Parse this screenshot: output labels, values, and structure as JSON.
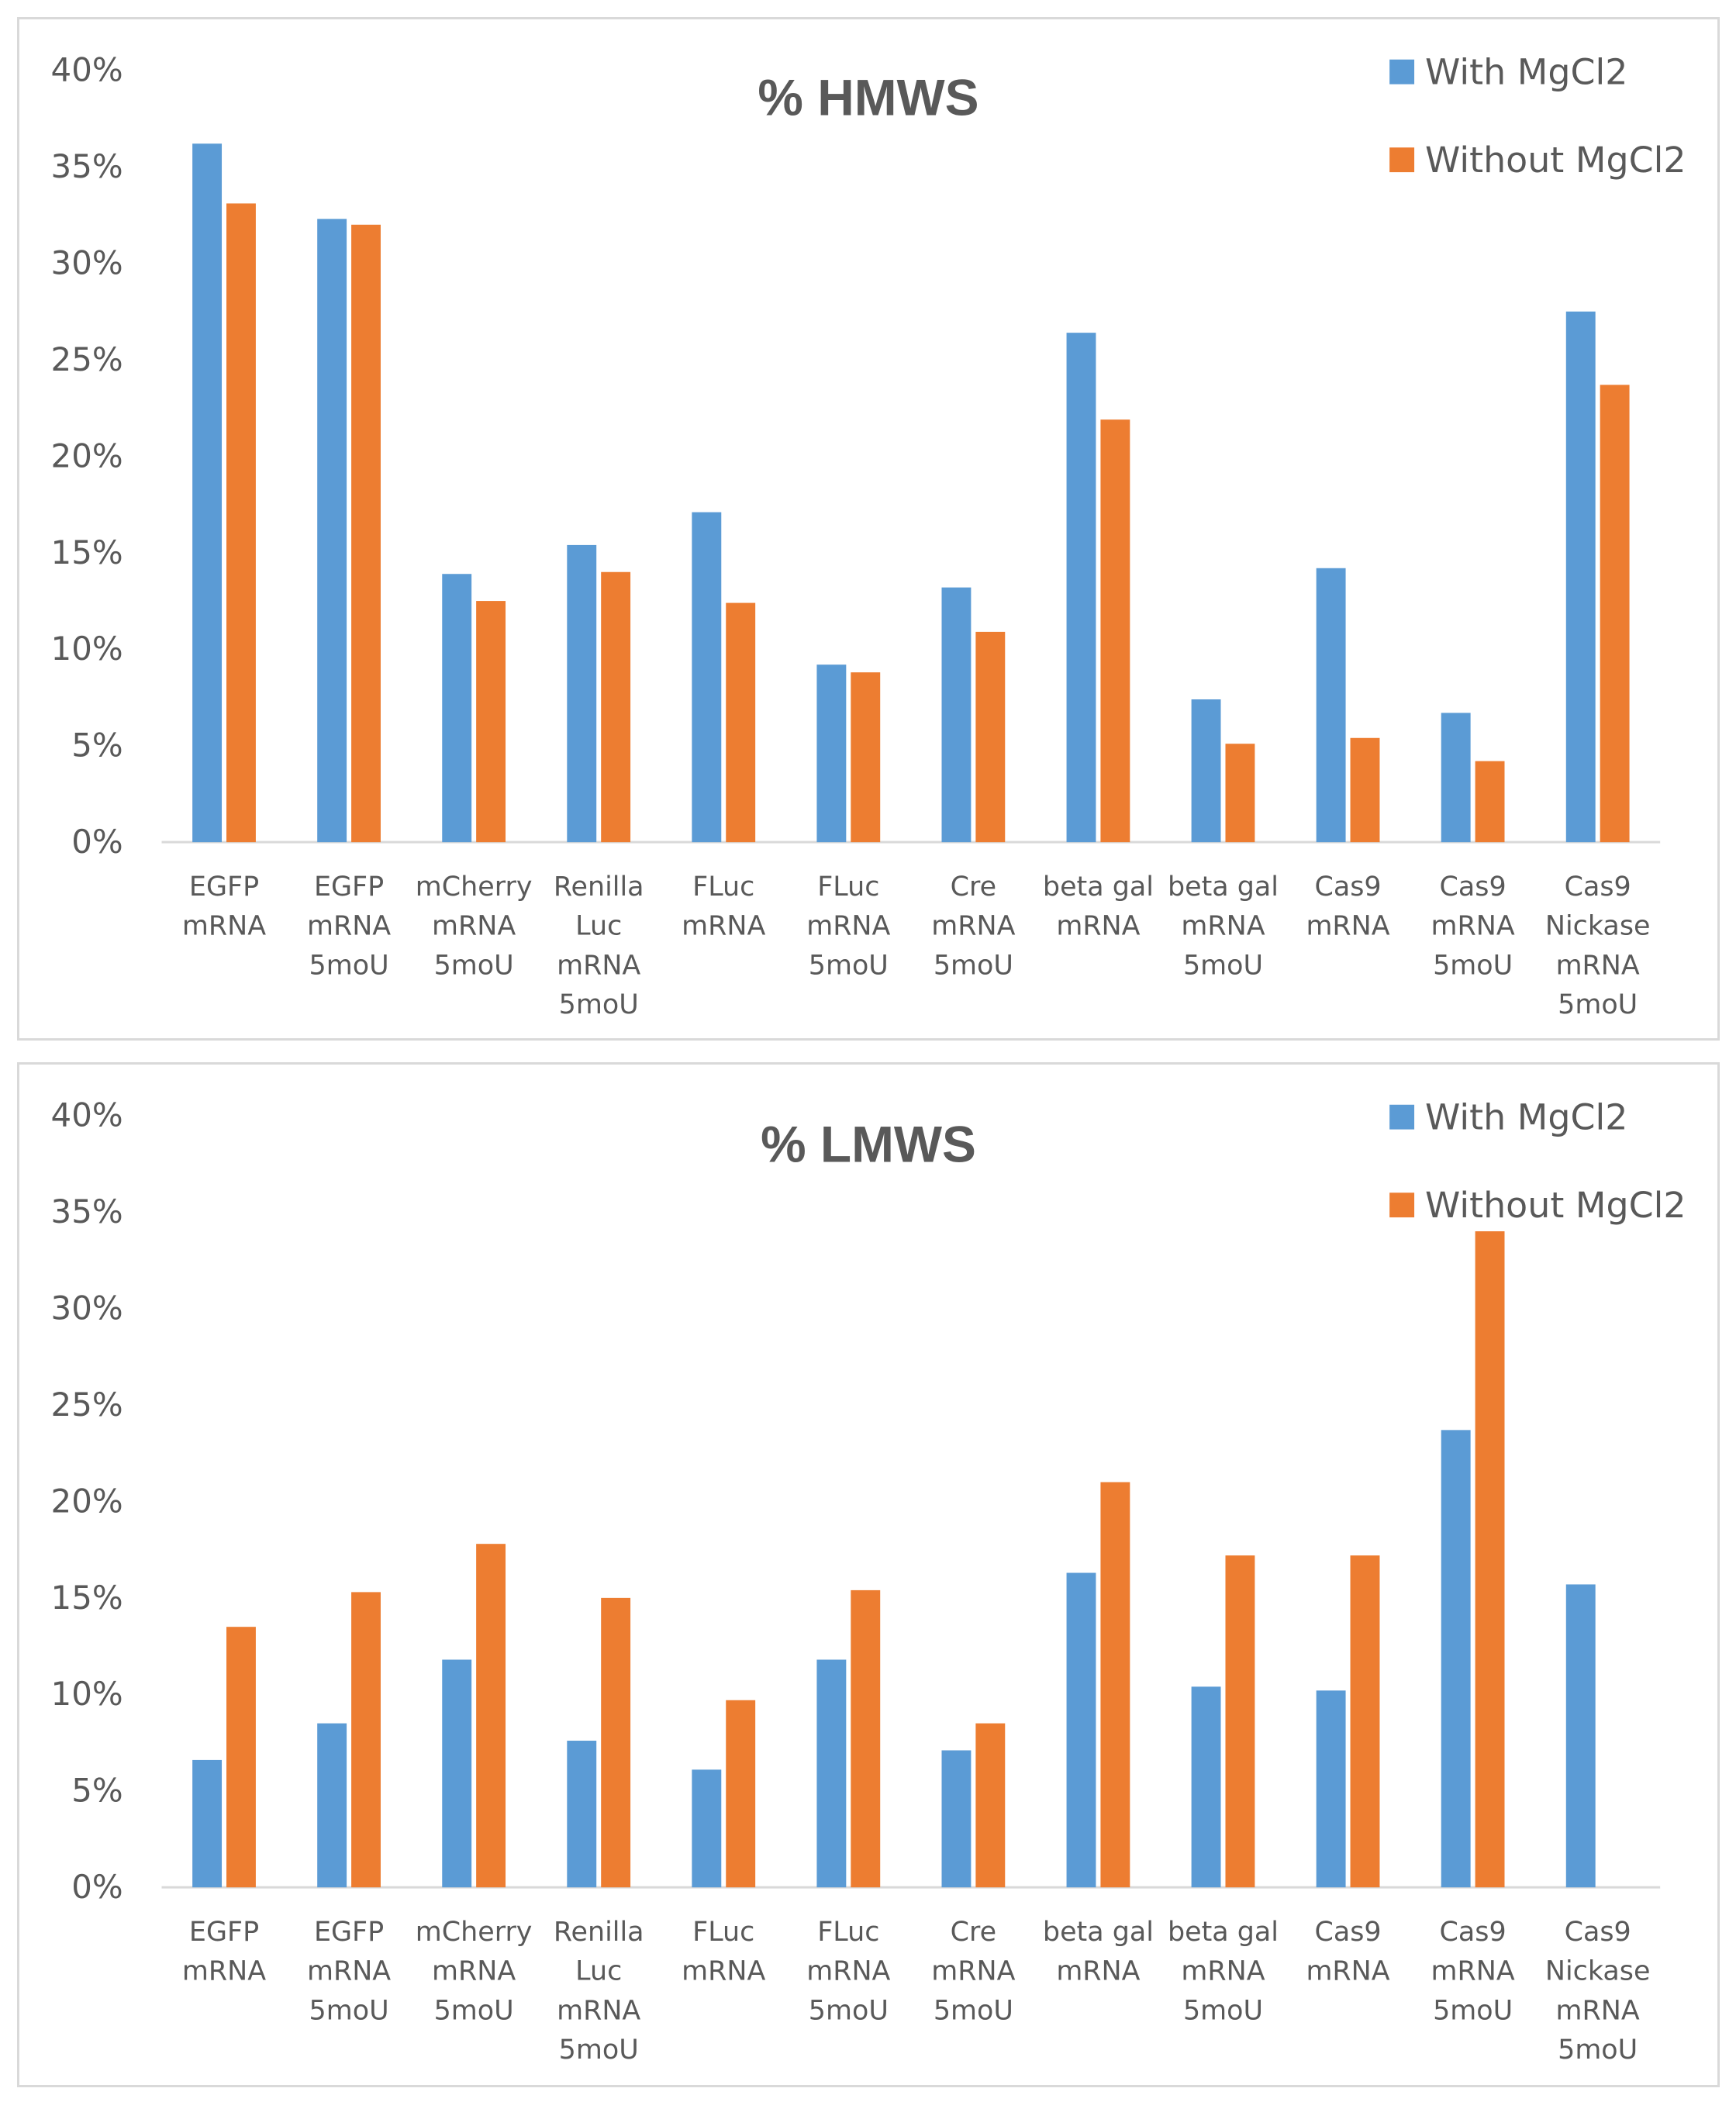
{
  "chart_data": [
    {
      "type": "bar",
      "title": "% HMWS",
      "xlabel": "",
      "ylabel": "",
      "ylim": [
        0,
        0.4
      ],
      "yticks": [
        "0%",
        "5%",
        "10%",
        "15%",
        "20%",
        "25%",
        "30%",
        "35%",
        "40%"
      ],
      "grid": false,
      "legend_position": "top-right",
      "categories": [
        [
          "EGFP",
          "mRNA"
        ],
        [
          "EGFP",
          "mRNA",
          "5moU"
        ],
        [
          "mCherry",
          "mRNA",
          "5moU"
        ],
        [
          "Renilla",
          "Luc",
          "mRNA",
          "5moU"
        ],
        [
          "FLuc",
          "mRNA"
        ],
        [
          "FLuc",
          "mRNA",
          "5moU"
        ],
        [
          "Cre",
          "mRNA",
          "5moU"
        ],
        [
          "beta gal",
          "mRNA"
        ],
        [
          "beta gal",
          "mRNA",
          "5moU"
        ],
        [
          "Cas9",
          "mRNA"
        ],
        [
          "Cas9",
          "mRNA",
          "5moU"
        ],
        [
          "Cas9",
          "Nickase",
          "mRNA",
          "5moU"
        ]
      ],
      "series": [
        {
          "name": "With MgCl2",
          "color": "#5b9bd5",
          "values": [
            0.362,
            0.323,
            0.139,
            0.154,
            0.171,
            0.092,
            0.132,
            0.264,
            0.074,
            0.142,
            0.067,
            0.275
          ]
        },
        {
          "name": "Without MgCl2",
          "color": "#ed7d31",
          "values": [
            0.331,
            0.32,
            0.125,
            0.14,
            0.124,
            0.088,
            0.109,
            0.219,
            0.051,
            0.054,
            0.042,
            0.237
          ]
        }
      ]
    },
    {
      "type": "bar",
      "title": "% LMWS",
      "xlabel": "",
      "ylabel": "",
      "ylim": [
        0,
        0.4
      ],
      "yticks": [
        "0%",
        "5%",
        "10%",
        "15%",
        "20%",
        "25%",
        "30%",
        "35%",
        "40%"
      ],
      "grid": false,
      "legend_position": "top-right",
      "categories": [
        [
          "EGFP",
          "mRNA"
        ],
        [
          "EGFP",
          "mRNA",
          "5moU"
        ],
        [
          "mCherry",
          "mRNA",
          "5moU"
        ],
        [
          "Renilla",
          "Luc",
          "mRNA",
          "5moU"
        ],
        [
          "FLuc",
          "mRNA"
        ],
        [
          "FLuc",
          "mRNA",
          "5moU"
        ],
        [
          "Cre",
          "mRNA",
          "5moU"
        ],
        [
          "beta gal",
          "mRNA"
        ],
        [
          "beta gal",
          "mRNA",
          "5moU"
        ],
        [
          "Cas9",
          "mRNA"
        ],
        [
          "Cas9",
          "mRNA",
          "5moU"
        ],
        [
          "Cas9",
          "Nickase",
          "mRNA",
          "5moU"
        ]
      ],
      "series": [
        {
          "name": "With MgCl2",
          "color": "#5b9bd5",
          "values": [
            0.066,
            0.085,
            0.118,
            0.076,
            0.061,
            0.118,
            0.071,
            0.163,
            0.104,
            0.102,
            0.237,
            0.157
          ]
        },
        {
          "name": "Without MgCl2",
          "color": "#ed7d31",
          "values": [
            0.135,
            0.153,
            0.178,
            0.15,
            0.097,
            0.154,
            0.085,
            0.21,
            0.172,
            0.172,
            0.34,
            0
          ]
        }
      ]
    }
  ],
  "colors": {
    "axis": "#d9d9d9",
    "text": "#595959",
    "border": "#d9d9d9"
  }
}
